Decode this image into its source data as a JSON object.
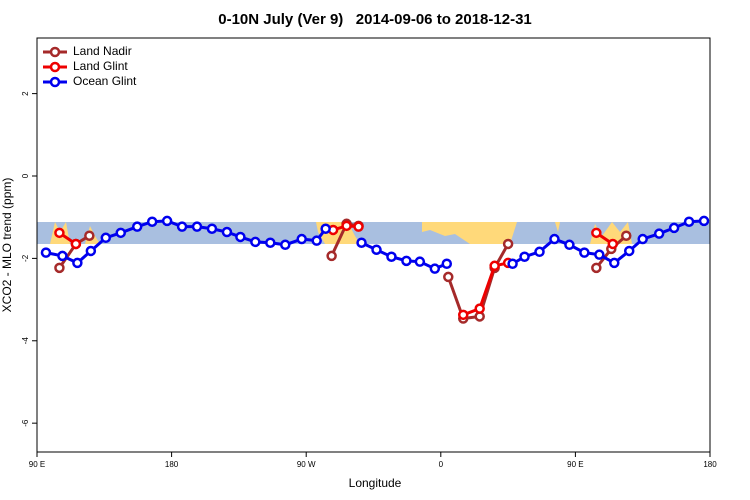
{
  "chart_data": {
    "type": "line",
    "title": "0-10N July (Ver 9)   2014-09-06 to 2018-12-31",
    "x_label": "Longitude",
    "y_label": "XCO2 - MLO trend (ppm)",
    "xlim": [
      90,
      540
    ],
    "xticks": [
      {
        "value": 90,
        "label": "90 E"
      },
      180,
      {
        "value": 270,
        "label": "90 W"
      },
      {
        "value": 360,
        "label": "0"
      },
      {
        "value": 450,
        "label": "90 E"
      },
      {
        "value": 540,
        "label": "180"
      }
    ],
    "ylim": [
      -6.7,
      3.35
    ],
    "yticks": [
      -6,
      -4,
      -2,
      0,
      2
    ],
    "legend": "top-left",
    "series": [
      {
        "name": "Land Nadir",
        "color": "#a52a2a",
        "x": [
          105,
          116,
          125,
          null,
          287,
          297,
          305,
          null,
          365,
          375,
          386,
          396,
          405,
          null,
          464,
          474,
          484
        ],
        "values": [
          -2.23,
          -1.65,
          -1.45,
          null,
          -1.94,
          -1.16,
          -1.21,
          null,
          -2.45,
          -3.46,
          -3.41,
          -2.23,
          -1.65,
          null,
          -2.23,
          -1.77,
          -1.45
        ]
      },
      {
        "name": "Land Glint",
        "color": "#ee0000",
        "x": [
          105,
          116,
          null,
          288,
          297,
          305,
          null,
          375,
          386,
          396,
          405,
          null,
          464,
          475
        ],
        "values": [
          -1.38,
          -1.65,
          null,
          -1.31,
          -1.21,
          -1.23,
          null,
          -3.37,
          -3.22,
          -2.18,
          -2.11,
          null,
          -1.38,
          -1.65
        ]
      },
      {
        "name": "Ocean Glint",
        "color": "#0000ee",
        "x": [
          96,
          107,
          117,
          126,
          136,
          146,
          157,
          167,
          177,
          187,
          197,
          207,
          217,
          226,
          236,
          246,
          256,
          267,
          277,
          283,
          null,
          307,
          317,
          327,
          337,
          346,
          356,
          364,
          null,
          408,
          416,
          426,
          436,
          446,
          456,
          466,
          476,
          486,
          495,
          506,
          516,
          526,
          536
        ],
        "values": [
          -1.86,
          -1.94,
          -2.11,
          -1.82,
          -1.5,
          -1.38,
          -1.23,
          -1.11,
          -1.09,
          -1.23,
          -1.23,
          -1.28,
          -1.36,
          -1.48,
          -1.6,
          -1.62,
          -1.67,
          -1.53,
          -1.57,
          -1.28,
          null,
          -1.62,
          -1.79,
          -1.96,
          -2.06,
          -2.08,
          -2.25,
          -2.13,
          null,
          -2.13,
          -1.96,
          -1.84,
          -1.53,
          -1.67,
          -1.86,
          -1.91,
          -2.11,
          -1.82,
          -1.53,
          -1.4,
          -1.26,
          -1.11,
          -1.09
        ]
      }
    ]
  }
}
